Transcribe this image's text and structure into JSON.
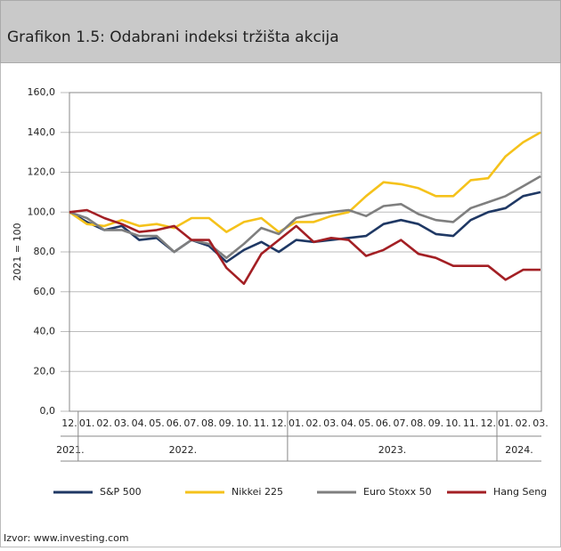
{
  "chart_data": {
    "type": "line",
    "title": "Grafikon 1.5: Odabrani indeksi tržišta akcija",
    "y_label": "2021 = 100",
    "source": "Izvor: www.investing.com",
    "categories": [
      "12.",
      "01.",
      "02.",
      "03.",
      "04.",
      "05.",
      "06.",
      "07.",
      "08.",
      "09.",
      "10.",
      "11.",
      "12.",
      "01.",
      "02.",
      "03.",
      "04.",
      "05.",
      "06.",
      "07.",
      "08.",
      "09.",
      "10.",
      "11.",
      "12.",
      "01.",
      "02.",
      "03."
    ],
    "years": [
      "2021.",
      "2022.",
      "2023.",
      "2024."
    ],
    "year_spans": [
      1,
      12,
      12,
      3
    ],
    "ylim": [
      0,
      160
    ],
    "yticks": [
      {
        "value": 0,
        "label": "0,0"
      },
      {
        "value": 20,
        "label": "20,0"
      },
      {
        "value": 40,
        "label": "40,0"
      },
      {
        "value": 60,
        "label": "60,0"
      },
      {
        "value": 80,
        "label": "80,0"
      },
      {
        "value": 100,
        "label": "100,0"
      },
      {
        "value": 120,
        "label": "120,0"
      },
      {
        "value": 140,
        "label": "140,0"
      },
      {
        "value": 160,
        "label": "160,0"
      }
    ],
    "grid": true,
    "legend": "bottom",
    "series": [
      {
        "name": "S&P 500",
        "color": "#1f3864",
        "values": [
          100,
          95,
          91,
          93,
          86,
          87,
          80,
          86,
          83,
          75,
          81,
          85,
          80,
          86,
          85,
          86,
          87,
          88,
          94,
          96,
          94,
          89,
          88,
          96,
          100,
          102,
          108,
          110
        ]
      },
      {
        "name": "Nikkei 225",
        "color": "#f5c21b",
        "values": [
          100,
          94,
          93,
          96,
          93,
          94,
          92,
          97,
          97,
          90,
          95,
          97,
          90,
          95,
          95,
          98,
          100,
          108,
          115,
          114,
          112,
          108,
          108,
          116,
          117,
          128,
          135,
          140
        ]
      },
      {
        "name": "Euro Stoxx 50",
        "color": "#7f7f7f",
        "values": [
          100,
          97,
          91,
          91,
          88,
          88,
          80,
          86,
          84,
          77,
          84,
          92,
          89,
          97,
          99,
          100,
          101,
          98,
          103,
          104,
          99,
          96,
          95,
          102,
          105,
          108,
          113,
          118
        ]
      },
      {
        "name": "Hang Seng",
        "color": "#a31f24",
        "values": [
          100,
          101,
          97,
          94,
          90,
          91,
          93,
          86,
          86,
          72,
          64,
          79,
          86,
          93,
          85,
          87,
          86,
          78,
          81,
          86,
          79,
          77,
          73,
          73,
          73,
          66,
          71,
          71
        ]
      }
    ]
  }
}
